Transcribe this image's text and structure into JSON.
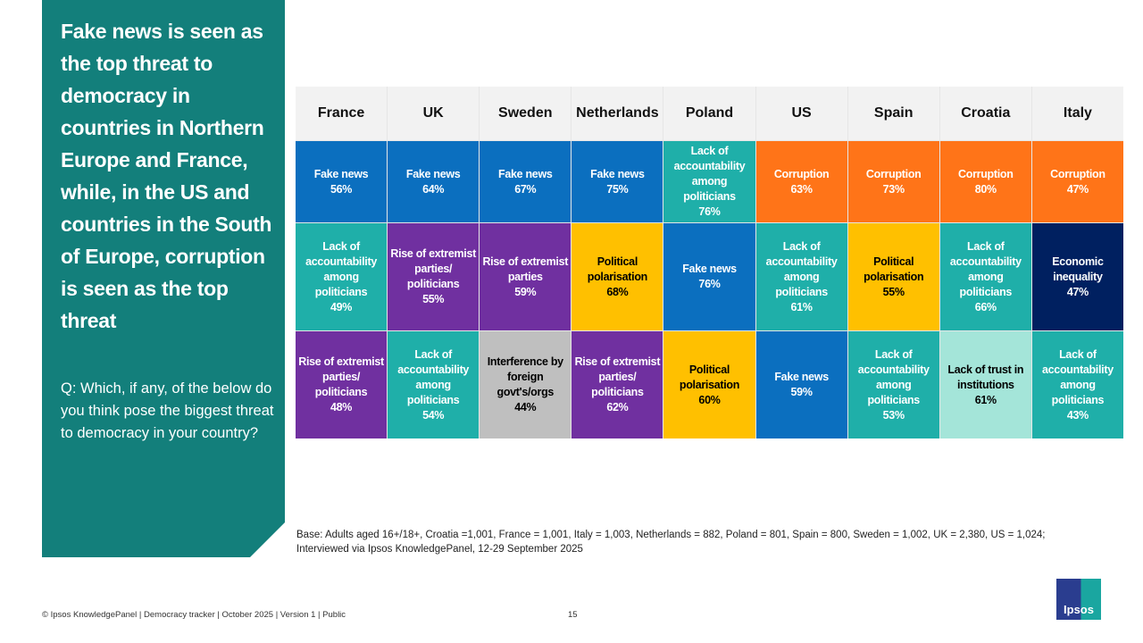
{
  "headline": "Fake news is seen as the top threat to democracy in countries in Northern Europe and France, while, in the US and countries in the South of Europe, corruption is seen as the top threat",
  "question": "Q: Which, if any, of the below do you think pose the biggest threat to democracy in your country?",
  "colors": {
    "fake_news": "#0B6FBF",
    "lack_accountability": "#1FAFA9",
    "corruption": "#FF7418",
    "rise_extremist": "#7030A0",
    "polarisation": "#FFC000",
    "economic_inequality": "#002060",
    "interference": "#BFBFBF",
    "trust_institutions": "#A4E5D9",
    "panel": "#137F7B"
  },
  "table": {
    "countries": [
      "France",
      "UK",
      "Sweden",
      "Netherlands",
      "Poland",
      "US",
      "Spain",
      "Croatia",
      "Italy"
    ],
    "rows": [
      [
        {
          "label": "Fake news",
          "value": "56%",
          "color": "fake_news"
        },
        {
          "label": "Fake news",
          "value": "64%",
          "color": "fake_news"
        },
        {
          "label": "Fake news",
          "value": "67%",
          "color": "fake_news"
        },
        {
          "label": "Fake news",
          "value": "75%",
          "color": "fake_news"
        },
        {
          "label": "Lack of accountability among politicians",
          "value": "76%",
          "color": "lack_accountability"
        },
        {
          "label": "Corruption",
          "value": "63%",
          "color": "corruption"
        },
        {
          "label": "Corruption",
          "value": "73%",
          "color": "corruption"
        },
        {
          "label": "Corruption",
          "value": "80%",
          "color": "corruption"
        },
        {
          "label": "Corruption",
          "value": "47%",
          "color": "corruption"
        }
      ],
      [
        {
          "label": "Lack of accountability among politicians",
          "value": "49%",
          "color": "lack_accountability"
        },
        {
          "label": "Rise of extremist parties/ politicians",
          "value": "55%",
          "color": "rise_extremist"
        },
        {
          "label": "Rise of extremist parties",
          "value": "59%",
          "color": "rise_extremist"
        },
        {
          "label": "Political polarisation",
          "value": "68%",
          "color": "polarisation"
        },
        {
          "label": "Fake news",
          "value": "76%",
          "color": "fake_news"
        },
        {
          "label": "Lack of accountability among politicians",
          "value": "61%",
          "color": "lack_accountability"
        },
        {
          "label": "Political polarisation",
          "value": "55%",
          "color": "polarisation"
        },
        {
          "label": "Lack of accountability among politicians",
          "value": "66%",
          "color": "lack_accountability"
        },
        {
          "label": "Economic inequality",
          "value": "47%",
          "color": "economic_inequality"
        }
      ],
      [
        {
          "label": "Rise of extremist parties/ politicians",
          "value": "48%",
          "color": "rise_extremist"
        },
        {
          "label": "Lack of accountability among politicians",
          "value": "54%",
          "color": "lack_accountability"
        },
        {
          "label": "Interference by foreign govt's/orgs",
          "value": "44%",
          "color": "interference"
        },
        {
          "label": "Rise of extremist parties/ politicians",
          "value": "62%",
          "color": "rise_extremist"
        },
        {
          "label": "Political polarisation",
          "value": "60%",
          "color": "polarisation"
        },
        {
          "label": "Fake news",
          "value": "59%",
          "color": "fake_news"
        },
        {
          "label": "Lack of accountability among politicians",
          "value": "53%",
          "color": "lack_accountability"
        },
        {
          "label": "Lack of trust in institutions",
          "value": "61%",
          "color": "trust_institutions"
        },
        {
          "label": "Lack of accountability among politicians",
          "value": "43%",
          "color": "lack_accountability"
        }
      ]
    ]
  },
  "base_note": "Base: Adults aged 16+/18+, Croatia =1,001, France = 1,001, Italy = 1,003, Netherlands = 882, Poland = 801, Spain = 800, Sweden = 1,002, UK = 2,380, US = 1,024; Interviewed via Ipsos KnowledgePanel, 12-29 September 2025",
  "footer": "© Ipsos KnowledgePanel | Democracy tracker | October 2025 | Version 1 | Public",
  "page_number": "15",
  "logo_text": "Ipsos"
}
